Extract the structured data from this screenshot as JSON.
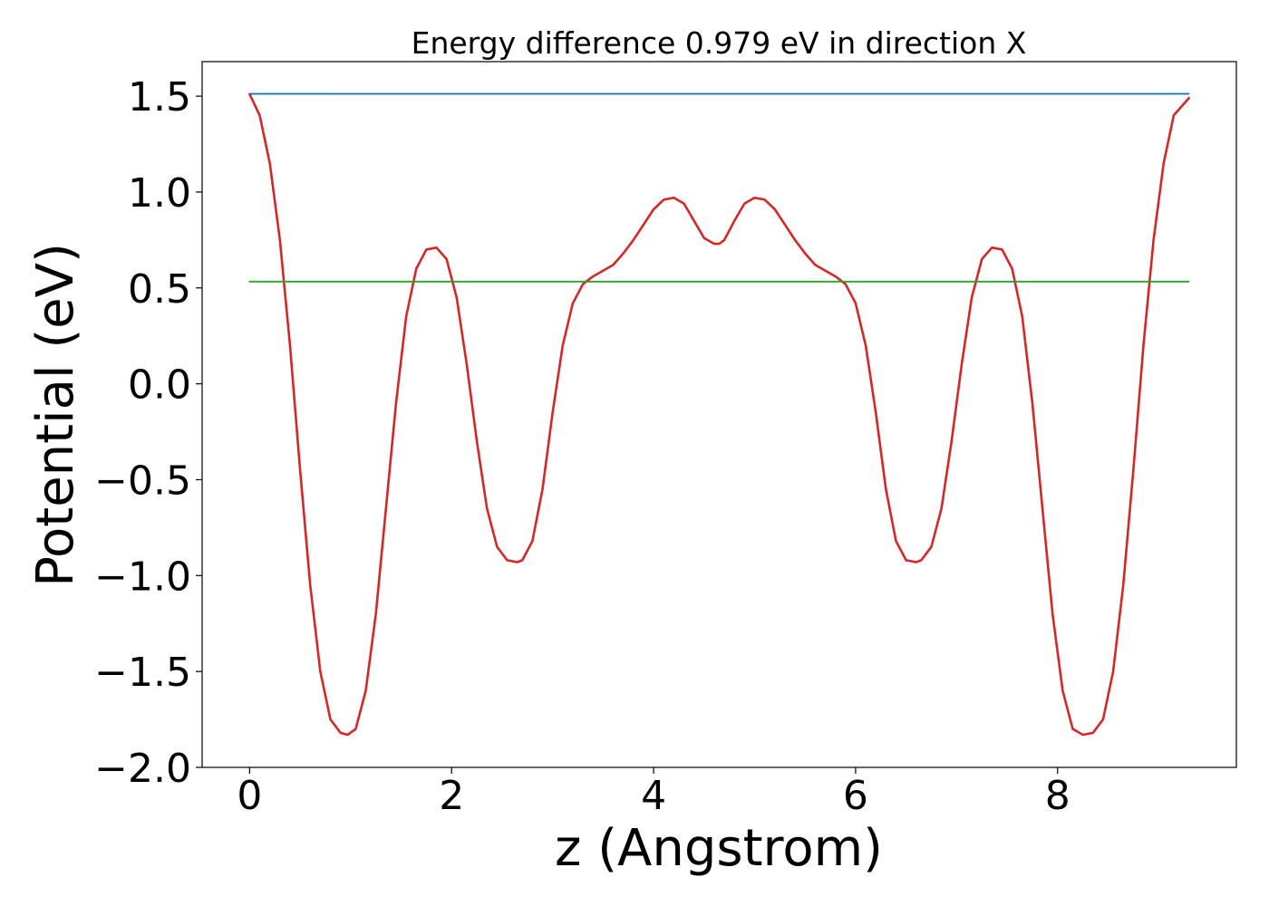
{
  "chart_data": {
    "type": "line",
    "title": "Energy difference 0.979 eV in direction X",
    "xlabel": "z (Angstrom)",
    "ylabel": "Potential (eV)",
    "xlim": [
      -0.47,
      9.77
    ],
    "ylim": [
      -2.0,
      1.68
    ],
    "xticks": [
      0,
      2,
      4,
      6,
      8
    ],
    "xtick_labels": [
      "0",
      "2",
      "4",
      "6",
      "8"
    ],
    "yticks": [
      -2.0,
      -1.5,
      -1.0,
      -0.5,
      0.0,
      0.5,
      1.0,
      1.5
    ],
    "ytick_labels": [
      "−2.0",
      "−1.5",
      "−1.0",
      "−0.5",
      "0.0",
      "0.5",
      "1.0",
      "1.5"
    ],
    "grid": false,
    "series": [
      {
        "color": "#d62728",
        "x": [
          0.0,
          0.1,
          0.2,
          0.3,
          0.4,
          0.5,
          0.6,
          0.7,
          0.8,
          0.9,
          0.97,
          1.05,
          1.15,
          1.25,
          1.35,
          1.45,
          1.55,
          1.65,
          1.75,
          1.85,
          1.95,
          2.05,
          2.15,
          2.25,
          2.35,
          2.45,
          2.55,
          2.65,
          2.7,
          2.8,
          2.9,
          3.0,
          3.1,
          3.2,
          3.3,
          3.4,
          3.5,
          3.6,
          3.7,
          3.8,
          3.9,
          4.0,
          4.1,
          4.2,
          4.3,
          4.4,
          4.5,
          4.6,
          4.65,
          4.7,
          4.8,
          4.9,
          5.0,
          5.1,
          5.2,
          5.3,
          5.4,
          5.5,
          5.6,
          5.7,
          5.8,
          5.9,
          6.0,
          6.1,
          6.2,
          6.3,
          6.4,
          6.5,
          6.6,
          6.65,
          6.75,
          6.85,
          6.95,
          7.05,
          7.15,
          7.25,
          7.35,
          7.45,
          7.55,
          7.65,
          7.75,
          7.85,
          7.95,
          8.05,
          8.15,
          8.25,
          8.35,
          8.45,
          8.55,
          8.65,
          8.75,
          8.85,
          8.95,
          9.05,
          9.15,
          9.3
        ],
        "values": [
          1.51,
          1.4,
          1.15,
          0.75,
          0.2,
          -0.45,
          -1.05,
          -1.5,
          -1.75,
          -1.82,
          -1.83,
          -1.8,
          -1.6,
          -1.2,
          -0.65,
          -0.1,
          0.35,
          0.6,
          0.7,
          0.71,
          0.65,
          0.45,
          0.1,
          -0.3,
          -0.65,
          -0.85,
          -0.92,
          -0.93,
          -0.92,
          -0.82,
          -0.55,
          -0.15,
          0.2,
          0.42,
          0.52,
          0.56,
          0.59,
          0.62,
          0.68,
          0.75,
          0.83,
          0.91,
          0.96,
          0.97,
          0.94,
          0.85,
          0.76,
          0.73,
          0.73,
          0.75,
          0.85,
          0.94,
          0.97,
          0.96,
          0.91,
          0.83,
          0.75,
          0.68,
          0.62,
          0.59,
          0.56,
          0.52,
          0.42,
          0.2,
          -0.15,
          -0.55,
          -0.82,
          -0.92,
          -0.93,
          -0.92,
          -0.85,
          -0.65,
          -0.3,
          0.1,
          0.45,
          0.65,
          0.71,
          0.7,
          0.6,
          0.35,
          -0.1,
          -0.65,
          -1.2,
          -1.6,
          -1.8,
          -1.83,
          -1.82,
          -1.75,
          -1.5,
          -1.05,
          -0.45,
          0.2,
          0.75,
          1.15,
          1.4,
          1.49
        ]
      },
      {
        "color": "#1f77b4",
        "x": [
          0.0,
          9.3
        ],
        "values": [
          1.512,
          1.512
        ]
      },
      {
        "color": "#2ca02c",
        "x": [
          0.0,
          9.3
        ],
        "values": [
          0.533,
          0.533
        ]
      }
    ]
  }
}
